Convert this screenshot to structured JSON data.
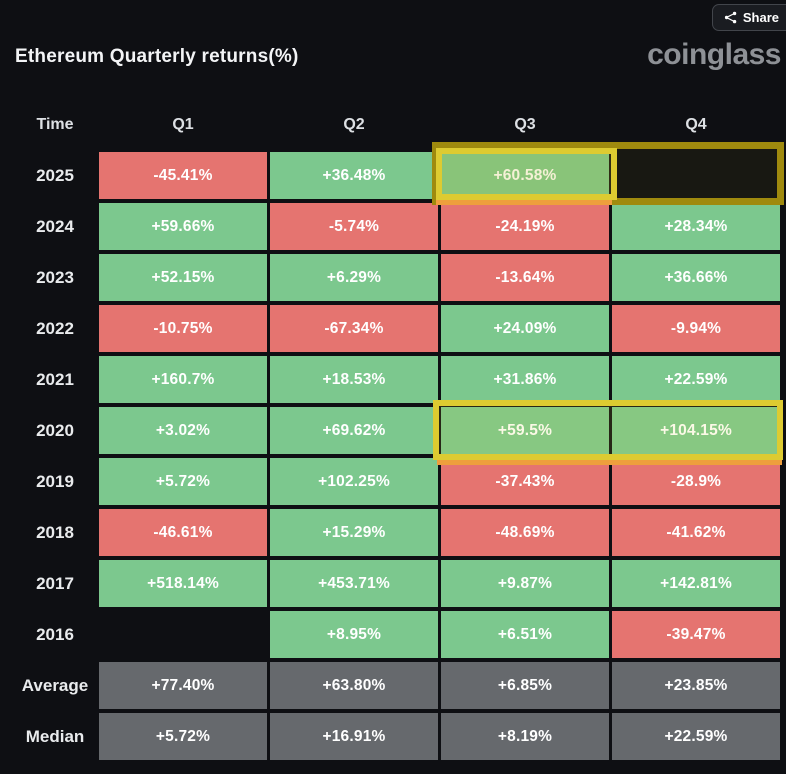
{
  "page": {
    "title": "Ethereum Quarterly returns(%)",
    "brand": "coinglass",
    "share": {
      "label": "Share",
      "icon": "share-nodes-icon"
    }
  },
  "table": {
    "columns": [
      "Time",
      "Q1",
      "Q2",
      "Q3",
      "Q4"
    ],
    "rows": [
      {
        "label": "2025",
        "cells": [
          {
            "text": "-45.41%",
            "type": "negative"
          },
          {
            "text": "+36.48%",
            "type": "positive"
          },
          {
            "text": "+60.58%",
            "type": "positive",
            "highlight": true
          },
          {
            "text": "",
            "type": "empty",
            "highlight": true
          }
        ]
      },
      {
        "label": "2024",
        "cells": [
          {
            "text": "+59.66%",
            "type": "positive"
          },
          {
            "text": "-5.74%",
            "type": "negative"
          },
          {
            "text": "-24.19%",
            "type": "negative"
          },
          {
            "text": "+28.34%",
            "type": "positive"
          }
        ]
      },
      {
        "label": "2023",
        "cells": [
          {
            "text": "+52.15%",
            "type": "positive"
          },
          {
            "text": "+6.29%",
            "type": "positive"
          },
          {
            "text": "-13.64%",
            "type": "negative"
          },
          {
            "text": "+36.66%",
            "type": "positive"
          }
        ]
      },
      {
        "label": "2022",
        "cells": [
          {
            "text": "-10.75%",
            "type": "negative"
          },
          {
            "text": "-67.34%",
            "type": "negative"
          },
          {
            "text": "+24.09%",
            "type": "positive"
          },
          {
            "text": "-9.94%",
            "type": "negative"
          }
        ]
      },
      {
        "label": "2021",
        "cells": [
          {
            "text": "+160.7%",
            "type": "positive"
          },
          {
            "text": "+18.53%",
            "type": "positive"
          },
          {
            "text": "+31.86%",
            "type": "positive"
          },
          {
            "text": "+22.59%",
            "type": "positive"
          }
        ]
      },
      {
        "label": "2020",
        "cells": [
          {
            "text": "+3.02%",
            "type": "positive"
          },
          {
            "text": "+69.62%",
            "type": "positive"
          },
          {
            "text": "+59.5%",
            "type": "positive",
            "highlight": true
          },
          {
            "text": "+104.15%",
            "type": "positive",
            "highlight": true
          }
        ]
      },
      {
        "label": "2019",
        "cells": [
          {
            "text": "+5.72%",
            "type": "positive"
          },
          {
            "text": "+102.25%",
            "type": "positive"
          },
          {
            "text": "-37.43%",
            "type": "negative"
          },
          {
            "text": "-28.9%",
            "type": "negative"
          }
        ]
      },
      {
        "label": "2018",
        "cells": [
          {
            "text": "-46.61%",
            "type": "negative"
          },
          {
            "text": "+15.29%",
            "type": "positive"
          },
          {
            "text": "-48.69%",
            "type": "negative"
          },
          {
            "text": "-41.62%",
            "type": "negative"
          }
        ]
      },
      {
        "label": "2017",
        "cells": [
          {
            "text": "+518.14%",
            "type": "positive"
          },
          {
            "text": "+453.71%",
            "type": "positive"
          },
          {
            "text": "+9.87%",
            "type": "positive"
          },
          {
            "text": "+142.81%",
            "type": "positive"
          }
        ]
      },
      {
        "label": "2016",
        "cells": [
          {
            "text": "",
            "type": "empty"
          },
          {
            "text": "+8.95%",
            "type": "positive"
          },
          {
            "text": "+6.51%",
            "type": "positive"
          },
          {
            "text": "-39.47%",
            "type": "negative"
          }
        ]
      },
      {
        "label": "Average",
        "cells": [
          {
            "text": "+77.40%",
            "type": "neutral"
          },
          {
            "text": "+63.80%",
            "type": "neutral"
          },
          {
            "text": "+6.85%",
            "type": "neutral"
          },
          {
            "text": "+23.85%",
            "type": "neutral"
          }
        ]
      },
      {
        "label": "Median",
        "cells": [
          {
            "text": "+5.72%",
            "type": "neutral"
          },
          {
            "text": "+16.91%",
            "type": "neutral"
          },
          {
            "text": "+8.19%",
            "type": "neutral"
          },
          {
            "text": "+22.59%",
            "type": "neutral"
          }
        ]
      }
    ]
  },
  "chart_data": {
    "type": "heatmap",
    "title": "Ethereum Quarterly returns(%)",
    "unit": "%",
    "columns": [
      "Q1",
      "Q2",
      "Q3",
      "Q4"
    ],
    "rows": [
      "2025",
      "2024",
      "2023",
      "2022",
      "2021",
      "2020",
      "2019",
      "2018",
      "2017",
      "2016",
      "Average",
      "Median"
    ],
    "values": [
      [
        -45.41,
        36.48,
        60.58,
        null
      ],
      [
        59.66,
        -5.74,
        -24.19,
        28.34
      ],
      [
        52.15,
        6.29,
        -13.64,
        36.66
      ],
      [
        -10.75,
        -67.34,
        24.09,
        -9.94
      ],
      [
        160.7,
        18.53,
        31.86,
        22.59
      ],
      [
        3.02,
        69.62,
        59.5,
        104.15
      ],
      [
        5.72,
        102.25,
        -37.43,
        -28.9
      ],
      [
        -46.61,
        15.29,
        -48.69,
        -41.62
      ],
      [
        518.14,
        453.71,
        9.87,
        142.81
      ],
      [
        null,
        8.95,
        6.51,
        -39.47
      ],
      [
        77.4,
        63.8,
        6.85,
        23.85
      ],
      [
        5.72,
        16.91,
        8.19,
        22.59
      ]
    ],
    "color_coding": "green = positive return, red = negative return, gray = summary rows (Average/Median), blank = no data",
    "highlighted_cells": [
      "2025-Q3",
      "2025-Q4",
      "2020-Q3",
      "2020-Q4"
    ],
    "legend_position": "none",
    "grid": false
  },
  "colors": {
    "background": "#0e0f13",
    "positive": "#7cc88e",
    "negative": "#e57470",
    "neutral": "#66696d",
    "highlight_yellow": "#ddcb31",
    "highlight_olive": "#9f8a0e",
    "highlight_orange": "#ee9f3d"
  }
}
